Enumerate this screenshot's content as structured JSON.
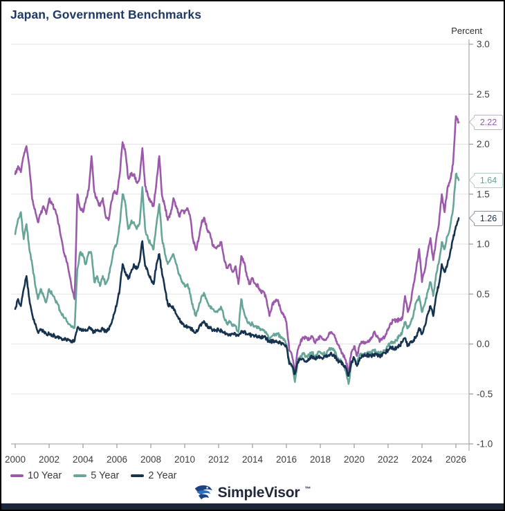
{
  "header": {
    "title": "Japan, Government Benchmarks"
  },
  "axes": {
    "y_label": "Percent",
    "y_ticks": [
      "3.0",
      "2.5",
      "2.0",
      "1.5",
      "1.0",
      "0.5",
      "0.0",
      "-0.5",
      "-1.0"
    ],
    "y_tick_values": [
      3.0,
      2.5,
      2.0,
      1.5,
      1.0,
      0.5,
      0.0,
      -0.5,
      -1.0
    ],
    "x_ticks": [
      2000,
      2002,
      2004,
      2006,
      2008,
      2010,
      2012,
      2014,
      2016,
      2018,
      2020,
      2022,
      2024,
      2026
    ]
  },
  "legend": [
    {
      "label": "10 Year",
      "color": "#9c59ab"
    },
    {
      "label": "5 Year",
      "color": "#66a598"
    },
    {
      "label": "2 Year",
      "color": "#16324f"
    }
  ],
  "callouts": [
    {
      "value": "2.22",
      "text_color": "#9c59ab",
      "border_color": "#c9aed3"
    },
    {
      "value": "1.64",
      "text_color": "#66a598",
      "border_color": "#a9cfc6"
    },
    {
      "value": "1.26",
      "text_color": "#16324f",
      "border_color": "#8a93a3"
    }
  ],
  "branding": {
    "name": "SimpleVisor",
    "tm": "™"
  },
  "colors": {
    "title": "#1f3864",
    "gridline": "#e3e3e3",
    "axis_line": "#b0b0b0",
    "tick": "#999999",
    "tick_label": "#3d3d3d",
    "footer_bar": "#1d2636",
    "logo_blue_dark": "#1c4480",
    "logo_blue_light": "#2e6fc4"
  },
  "chart_data": {
    "type": "line",
    "title": "Japan, Government Benchmarks",
    "xlabel": "",
    "ylabel": "Percent",
    "xlim": [
      1999.6,
      2026.9
    ],
    "ylim": [
      -1.0,
      3.0
    ],
    "grid": "horizontal",
    "legend_position": "bottom-left",
    "x_start": 2000.0,
    "x_step": 0.16667,
    "series": [
      {
        "name": "10 Year",
        "color": "#9c59ab",
        "last_value": 2.22,
        "values": [
          1.7,
          1.78,
          1.72,
          1.88,
          1.98,
          1.78,
          1.45,
          1.35,
          1.22,
          1.3,
          1.38,
          1.3,
          1.45,
          1.4,
          1.35,
          1.25,
          1.1,
          0.95,
          0.85,
          0.72,
          0.56,
          0.45,
          1.5,
          1.36,
          1.32,
          1.44,
          1.54,
          1.88,
          1.52,
          1.44,
          1.38,
          1.46,
          1.28,
          1.24,
          1.42,
          1.52,
          1.5,
          1.7,
          2.02,
          1.92,
          1.66,
          1.7,
          1.7,
          1.62,
          1.66,
          1.96,
          1.58,
          1.48,
          1.42,
          1.38,
          1.62,
          1.88,
          1.48,
          1.38,
          1.24,
          1.3,
          1.46,
          1.38,
          1.28,
          1.34,
          1.32,
          1.36,
          1.26,
          1.04,
          0.94,
          1.06,
          1.22,
          1.26,
          1.14,
          1.1,
          0.98,
          0.96,
          0.98,
          1.02,
          0.84,
          0.76,
          0.8,
          0.72,
          0.78,
          0.6,
          0.88,
          0.82,
          0.68,
          0.6,
          0.66,
          0.6,
          0.58,
          0.52,
          0.52,
          0.44,
          0.28,
          0.4,
          0.42,
          0.44,
          0.34,
          0.3,
          0.22,
          -0.06,
          -0.12,
          -0.28,
          -0.06,
          0.02,
          0.06,
          0.07,
          0.04,
          0.08,
          0.02,
          0.04,
          0.08,
          0.05,
          0.04,
          0.1,
          0.12,
          0.09,
          0.0,
          -0.05,
          -0.1,
          -0.16,
          -0.28,
          -0.08,
          -0.02,
          -0.12,
          0.0,
          0.02,
          0.02,
          0.03,
          0.05,
          0.12,
          0.08,
          0.02,
          0.06,
          0.08,
          0.14,
          0.21,
          0.24,
          0.23,
          0.25,
          0.25,
          0.48,
          0.32,
          0.42,
          0.6,
          0.76,
          0.95,
          0.62,
          0.74,
          0.92,
          1.06,
          0.84,
          1.04,
          1.2,
          1.5,
          1.32,
          1.56,
          1.64,
          1.8,
          2.28,
          2.22
        ]
      },
      {
        "name": "5 Year",
        "color": "#66a598",
        "last_value": 1.64,
        "values": [
          1.1,
          1.25,
          1.32,
          1.05,
          1.2,
          0.95,
          0.8,
          0.6,
          0.45,
          0.55,
          0.48,
          0.42,
          0.55,
          0.5,
          0.45,
          0.4,
          0.32,
          0.28,
          0.25,
          0.2,
          0.17,
          0.16,
          0.75,
          0.92,
          0.88,
          0.8,
          0.92,
          0.9,
          0.62,
          0.68,
          0.58,
          0.68,
          0.6,
          0.66,
          0.8,
          0.95,
          1.0,
          1.2,
          1.5,
          1.4,
          1.15,
          1.22,
          1.22,
          1.15,
          1.2,
          1.57,
          1.15,
          1.05,
          1.0,
          0.95,
          1.2,
          1.4,
          1.05,
          0.9,
          0.8,
          0.85,
          0.9,
          0.8,
          0.7,
          0.62,
          0.58,
          0.6,
          0.5,
          0.36,
          0.28,
          0.38,
          0.48,
          0.5,
          0.42,
          0.38,
          0.35,
          0.32,
          0.34,
          0.36,
          0.26,
          0.2,
          0.22,
          0.18,
          0.18,
          0.12,
          0.45,
          0.32,
          0.24,
          0.2,
          0.2,
          0.18,
          0.16,
          0.15,
          0.14,
          0.1,
          0.03,
          0.08,
          0.1,
          0.1,
          0.06,
          0.04,
          0.0,
          -0.18,
          -0.22,
          -0.38,
          -0.18,
          -0.12,
          -0.1,
          -0.12,
          -0.12,
          -0.08,
          -0.12,
          -0.1,
          -0.08,
          -0.1,
          -0.1,
          -0.06,
          -0.04,
          -0.06,
          -0.14,
          -0.16,
          -0.2,
          -0.26,
          -0.4,
          -0.2,
          -0.14,
          -0.2,
          -0.1,
          -0.1,
          -0.1,
          -0.08,
          -0.1,
          -0.06,
          -0.08,
          -0.1,
          -0.08,
          -0.06,
          -0.02,
          0.02,
          0.02,
          0.04,
          0.08,
          0.12,
          0.22,
          0.16,
          0.22,
          0.3,
          0.42,
          0.48,
          0.32,
          0.4,
          0.52,
          0.62,
          0.48,
          0.7,
          0.82,
          1.02,
          0.95,
          1.08,
          1.18,
          1.35,
          1.7,
          1.64
        ]
      },
      {
        "name": "2 Year",
        "color": "#16324f",
        "last_value": 1.26,
        "values": [
          0.35,
          0.45,
          0.38,
          0.55,
          0.68,
          0.45,
          0.3,
          0.2,
          0.12,
          0.15,
          0.12,
          0.1,
          0.1,
          0.09,
          0.08,
          0.07,
          0.06,
          0.05,
          0.05,
          0.04,
          0.03,
          0.03,
          0.16,
          0.14,
          0.15,
          0.13,
          0.16,
          0.14,
          0.12,
          0.14,
          0.13,
          0.15,
          0.13,
          0.14,
          0.2,
          0.3,
          0.4,
          0.55,
          0.8,
          0.72,
          0.65,
          0.72,
          0.8,
          0.75,
          0.82,
          1.03,
          0.78,
          0.72,
          0.65,
          0.6,
          0.8,
          0.9,
          0.7,
          0.55,
          0.4,
          0.38,
          0.36,
          0.3,
          0.25,
          0.2,
          0.18,
          0.17,
          0.16,
          0.14,
          0.12,
          0.16,
          0.2,
          0.22,
          0.18,
          0.16,
          0.14,
          0.14,
          0.14,
          0.13,
          0.11,
          0.1,
          0.1,
          0.1,
          0.1,
          0.08,
          0.13,
          0.12,
          0.1,
          0.09,
          0.09,
          0.08,
          0.08,
          0.07,
          0.07,
          0.05,
          0.02,
          0.03,
          0.02,
          0.02,
          0.01,
          0.0,
          -0.02,
          -0.2,
          -0.22,
          -0.3,
          -0.18,
          -0.15,
          -0.15,
          -0.18,
          -0.16,
          -0.12,
          -0.15,
          -0.14,
          -0.13,
          -0.14,
          -0.13,
          -0.11,
          -0.1,
          -0.12,
          -0.16,
          -0.18,
          -0.2,
          -0.24,
          -0.32,
          -0.18,
          -0.14,
          -0.22,
          -0.14,
          -0.12,
          -0.12,
          -0.11,
          -0.12,
          -0.1,
          -0.11,
          -0.12,
          -0.1,
          -0.09,
          -0.06,
          -0.03,
          -0.05,
          -0.04,
          -0.02,
          0.02,
          0.06,
          -0.02,
          0.02,
          0.04,
          0.08,
          0.16,
          0.1,
          0.18,
          0.3,
          0.38,
          0.28,
          0.48,
          0.6,
          0.8,
          0.72,
          0.8,
          0.92,
          1.05,
          1.18,
          1.26
        ]
      }
    ]
  }
}
